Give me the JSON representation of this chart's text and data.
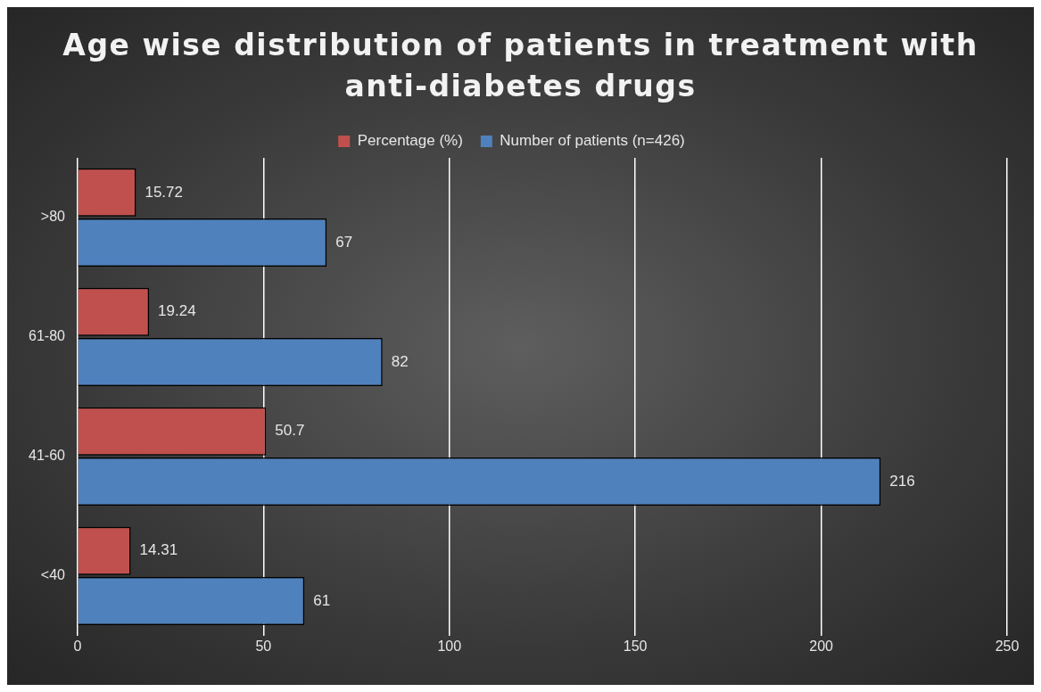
{
  "chart_data": {
    "type": "bar",
    "orientation": "horizontal",
    "title": "Age wise distribution of patients in treatment with anti-diabetes drugs",
    "categories": [
      ">80",
      "61-80",
      "41-60",
      "<40"
    ],
    "series": [
      {
        "name": "Percentage (%)",
        "color": "#c0504d",
        "values": [
          15.72,
          19.24,
          50.7,
          14.31
        ]
      },
      {
        "name": "Number of patients (n=426)",
        "color": "#4f81bd",
        "values": [
          67,
          82,
          216,
          61
        ]
      }
    ],
    "xlim": [
      0,
      250
    ],
    "xticks": [
      0,
      50,
      100,
      150,
      200,
      250
    ],
    "grid": "x",
    "legend": "top",
    "data_labels": true
  }
}
